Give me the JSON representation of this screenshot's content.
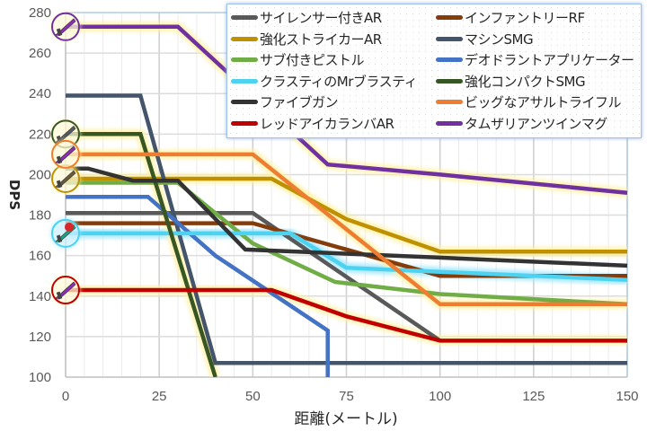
{
  "chart_data": {
    "type": "line",
    "title": "",
    "xlabel": "距離(メートル)",
    "ylabel": "DPS",
    "xlim": [
      0,
      150
    ],
    "ylim": [
      100,
      280
    ],
    "xticks": [
      "0",
      "25",
      "50",
      "75",
      "100",
      "125",
      "150"
    ],
    "xtick_values": [
      0,
      25,
      50,
      75,
      100,
      125,
      150
    ],
    "yticks": [
      "100",
      "120",
      "140",
      "160",
      "180",
      "200",
      "220",
      "240",
      "260",
      "280"
    ],
    "ytick_values": [
      100,
      120,
      140,
      160,
      180,
      200,
      220,
      240,
      260,
      280
    ],
    "grid": true,
    "legend_position": "top-right",
    "series": [
      {
        "name": "サイレンサー付きAR",
        "color": "#595959",
        "points": [
          [
            0,
            181
          ],
          [
            50,
            181
          ],
          [
            100,
            118
          ]
        ]
      },
      {
        "name": "インファントリーRF",
        "color": "#843c0c",
        "points": [
          [
            0,
            176
          ],
          [
            50,
            176
          ],
          [
            100,
            150
          ],
          [
            150,
            150
          ]
        ]
      },
      {
        "name": "強化ストライカーAR",
        "color": "#bf9000",
        "glow": true,
        "icon": true,
        "points": [
          [
            0,
            198
          ],
          [
            55,
            198
          ],
          [
            75,
            178
          ],
          [
            100,
            162
          ],
          [
            150,
            162
          ]
        ]
      },
      {
        "name": "マシンSMG",
        "color": "#44546a",
        "points": [
          [
            0,
            239
          ],
          [
            20,
            239
          ],
          [
            40,
            107
          ],
          [
            150,
            107
          ]
        ]
      },
      {
        "name": "サブ付きピストル",
        "color": "#70ad47",
        "points": [
          [
            0,
            196
          ],
          [
            30,
            196
          ],
          [
            50,
            166
          ],
          [
            72,
            147
          ],
          [
            100,
            141
          ],
          [
            150,
            136
          ]
        ]
      },
      {
        "name": "デオドラントアプリケーター",
        "color": "#4472c4",
        "points": [
          [
            0,
            189
          ],
          [
            22,
            189
          ],
          [
            40,
            160
          ],
          [
            70,
            123
          ],
          [
            70,
            100
          ]
        ]
      },
      {
        "name": "クラスティのMrブラスティ",
        "color": "#4dd2f0",
        "glow": true,
        "glow_color": "#9fe6ff",
        "icon": true,
        "points": [
          [
            0,
            171
          ],
          [
            60,
            171
          ],
          [
            75,
            154
          ],
          [
            100,
            152
          ],
          [
            150,
            148
          ]
        ]
      },
      {
        "name": "強化コンパクトSMG",
        "color": "#375623",
        "glow": true,
        "icon": true,
        "points": [
          [
            0,
            220
          ],
          [
            20,
            220
          ],
          [
            40,
            100
          ]
        ]
      },
      {
        "name": "ファイブガン",
        "color": "#333333",
        "points": [
          [
            0,
            203
          ],
          [
            6,
            203
          ],
          [
            18,
            197
          ],
          [
            30,
            197
          ],
          [
            48,
            163
          ],
          [
            100,
            159
          ],
          [
            150,
            155
          ]
        ]
      },
      {
        "name": "ビッグなアサルトライフル",
        "color": "#ed7d31",
        "glow": true,
        "icon": true,
        "points": [
          [
            0,
            210
          ],
          [
            50,
            210
          ],
          [
            100,
            136
          ],
          [
            150,
            136
          ]
        ]
      },
      {
        "name": "レッドアイカランバAR",
        "color": "#c00000",
        "glow": true,
        "icon": true,
        "points": [
          [
            0,
            143
          ],
          [
            55,
            143
          ],
          [
            75,
            130
          ],
          [
            100,
            118
          ],
          [
            150,
            118
          ]
        ]
      },
      {
        "name": "タムザリアンツインマグ",
        "color": "#7030a0",
        "glow": true,
        "icon": true,
        "points": [
          [
            0,
            273
          ],
          [
            30,
            273
          ],
          [
            70,
            205
          ],
          [
            100,
            200
          ],
          [
            150,
            191
          ]
        ]
      }
    ]
  },
  "colors": {
    "grid": "#d9d9d9",
    "axis": "#bfbfbf",
    "plot_border": "#9dc3e6",
    "glow": "#fff2a8"
  }
}
